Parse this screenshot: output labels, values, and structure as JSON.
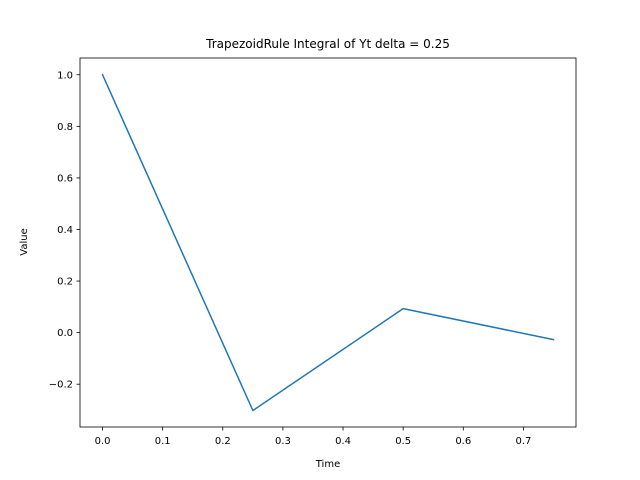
{
  "chart_data": {
    "type": "line",
    "title": "TrapezoidRule Integral of Yt delta = 0.25",
    "xlabel": "Time",
    "ylabel": "Value",
    "xlim": [
      -0.0375,
      0.7875
    ],
    "ylim": [
      -0.366,
      1.065
    ],
    "xticks": [
      0.0,
      0.1,
      0.2,
      0.3,
      0.4,
      0.5,
      0.6,
      0.7
    ],
    "xtick_labels": [
      "0.0",
      "0.1",
      "0.2",
      "0.3",
      "0.4",
      "0.5",
      "0.6",
      "0.7"
    ],
    "yticks": [
      -0.2,
      0.0,
      0.2,
      0.4,
      0.6,
      0.8,
      1.0
    ],
    "ytick_labels": [
      "−0.2",
      "0.0",
      "0.2",
      "0.4",
      "0.6",
      "0.8",
      "1.0"
    ],
    "grid": false,
    "series": [
      {
        "color": "#1f77b4",
        "x": [
          0.0,
          0.25,
          0.5,
          0.75
        ],
        "y": [
          1.0,
          -0.302,
          0.093,
          -0.027
        ]
      }
    ]
  }
}
